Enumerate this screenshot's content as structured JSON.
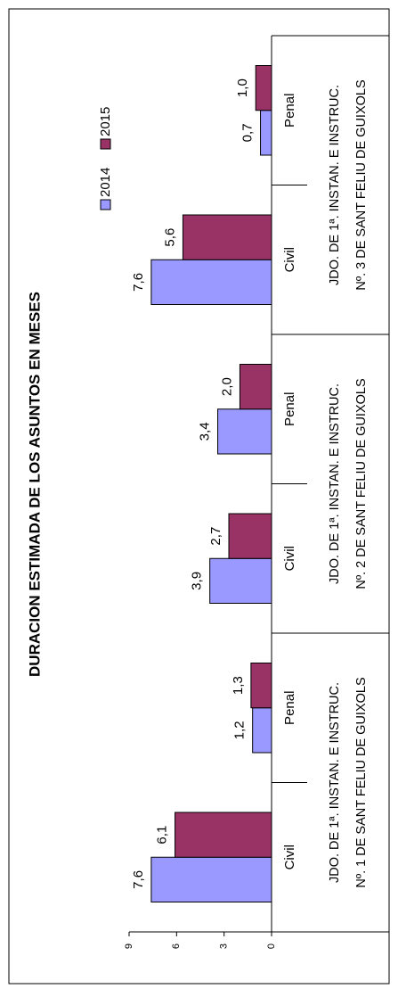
{
  "chart_data": {
    "type": "bar",
    "title": "DURACION ESTIMADA DE LOS ASUNTOS EN MESES",
    "categories": [
      "Civil",
      "Penal",
      "Civil",
      "Penal",
      "Civil",
      "Penal"
    ],
    "groups": [
      [
        "JDO.  DE 1ª.  INSTAN. E INSTRUC.",
        "Nº.  1 DE SANT FELIU DE GUIXOLS"
      ],
      [
        "JDO.  DE 1ª.  INSTAN. E INSTRUC.",
        "Nº.  2 DE SANT FELIU DE GUIXOLS"
      ],
      [
        "JDO.  DE 1ª.  INSTAN. E INSTRUC.",
        "Nº.  3 DE SANT FELIU DE GUIXOLS"
      ]
    ],
    "series": [
      {
        "name": "2014",
        "color": "#9999ff",
        "values": [
          7.6,
          1.2,
          3.9,
          3.4,
          7.6,
          0.7
        ],
        "value_labels": [
          "7,6",
          "1,2",
          "3,9",
          "3,4",
          "7,6",
          "0,7"
        ]
      },
      {
        "name": "2015",
        "color": "#993366",
        "values": [
          6.1,
          1.3,
          2.7,
          2.0,
          5.6,
          1.0
        ],
        "value_labels": [
          "6,1",
          "1,3",
          "2,7",
          "2,0",
          "5,6",
          "1,0"
        ]
      }
    ],
    "ylim": [
      0,
      9
    ],
    "yticks": [
      0,
      3,
      6,
      9
    ],
    "grid": false,
    "legend": "top-right",
    "rotation": -90
  }
}
